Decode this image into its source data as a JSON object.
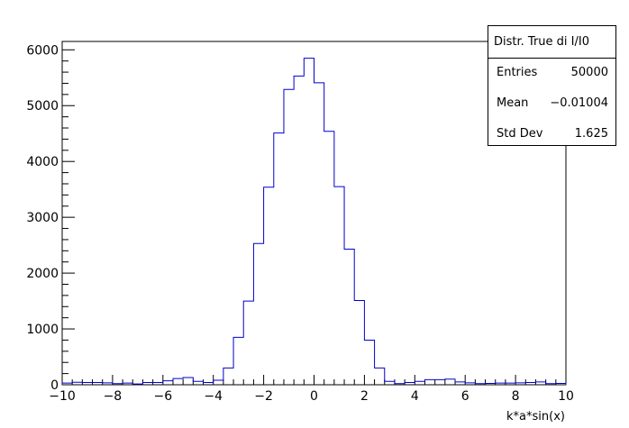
{
  "chart_data": {
    "type": "histogram",
    "xlabel": "k*a*sin(x)",
    "ylabel": "",
    "xlim": [
      -10,
      10
    ],
    "ylim": [
      0,
      6150
    ],
    "x_ticks": [
      "−10",
      "−8",
      "−6",
      "−4",
      "−2",
      "0",
      "2",
      "4",
      "6",
      "8",
      "10"
    ],
    "y_ticks": [
      "0",
      "1000",
      "2000",
      "3000",
      "4000",
      "5000",
      "6000"
    ],
    "bins": {
      "low": -10,
      "width": 0.4,
      "count": 50
    },
    "values": [
      30,
      45,
      40,
      40,
      35,
      20,
      30,
      15,
      40,
      40,
      70,
      110,
      130,
      60,
      40,
      80,
      300,
      850,
      1500,
      2530,
      3540,
      4510,
      5290,
      5530,
      5850,
      5410,
      4540,
      3550,
      2430,
      1510,
      800,
      300,
      60,
      20,
      40,
      60,
      90,
      90,
      100,
      50,
      35,
      20,
      25,
      30,
      30,
      35,
      40,
      50,
      20,
      25
    ],
    "line_color": "#0000cc"
  },
  "stats": {
    "title": "Distr. True di I/I0",
    "rows": [
      {
        "label": "Entries",
        "value": "50000"
      },
      {
        "label": "Mean",
        "value": "−0.01004"
      },
      {
        "label": "Std Dev",
        "value": "1.625"
      }
    ]
  }
}
